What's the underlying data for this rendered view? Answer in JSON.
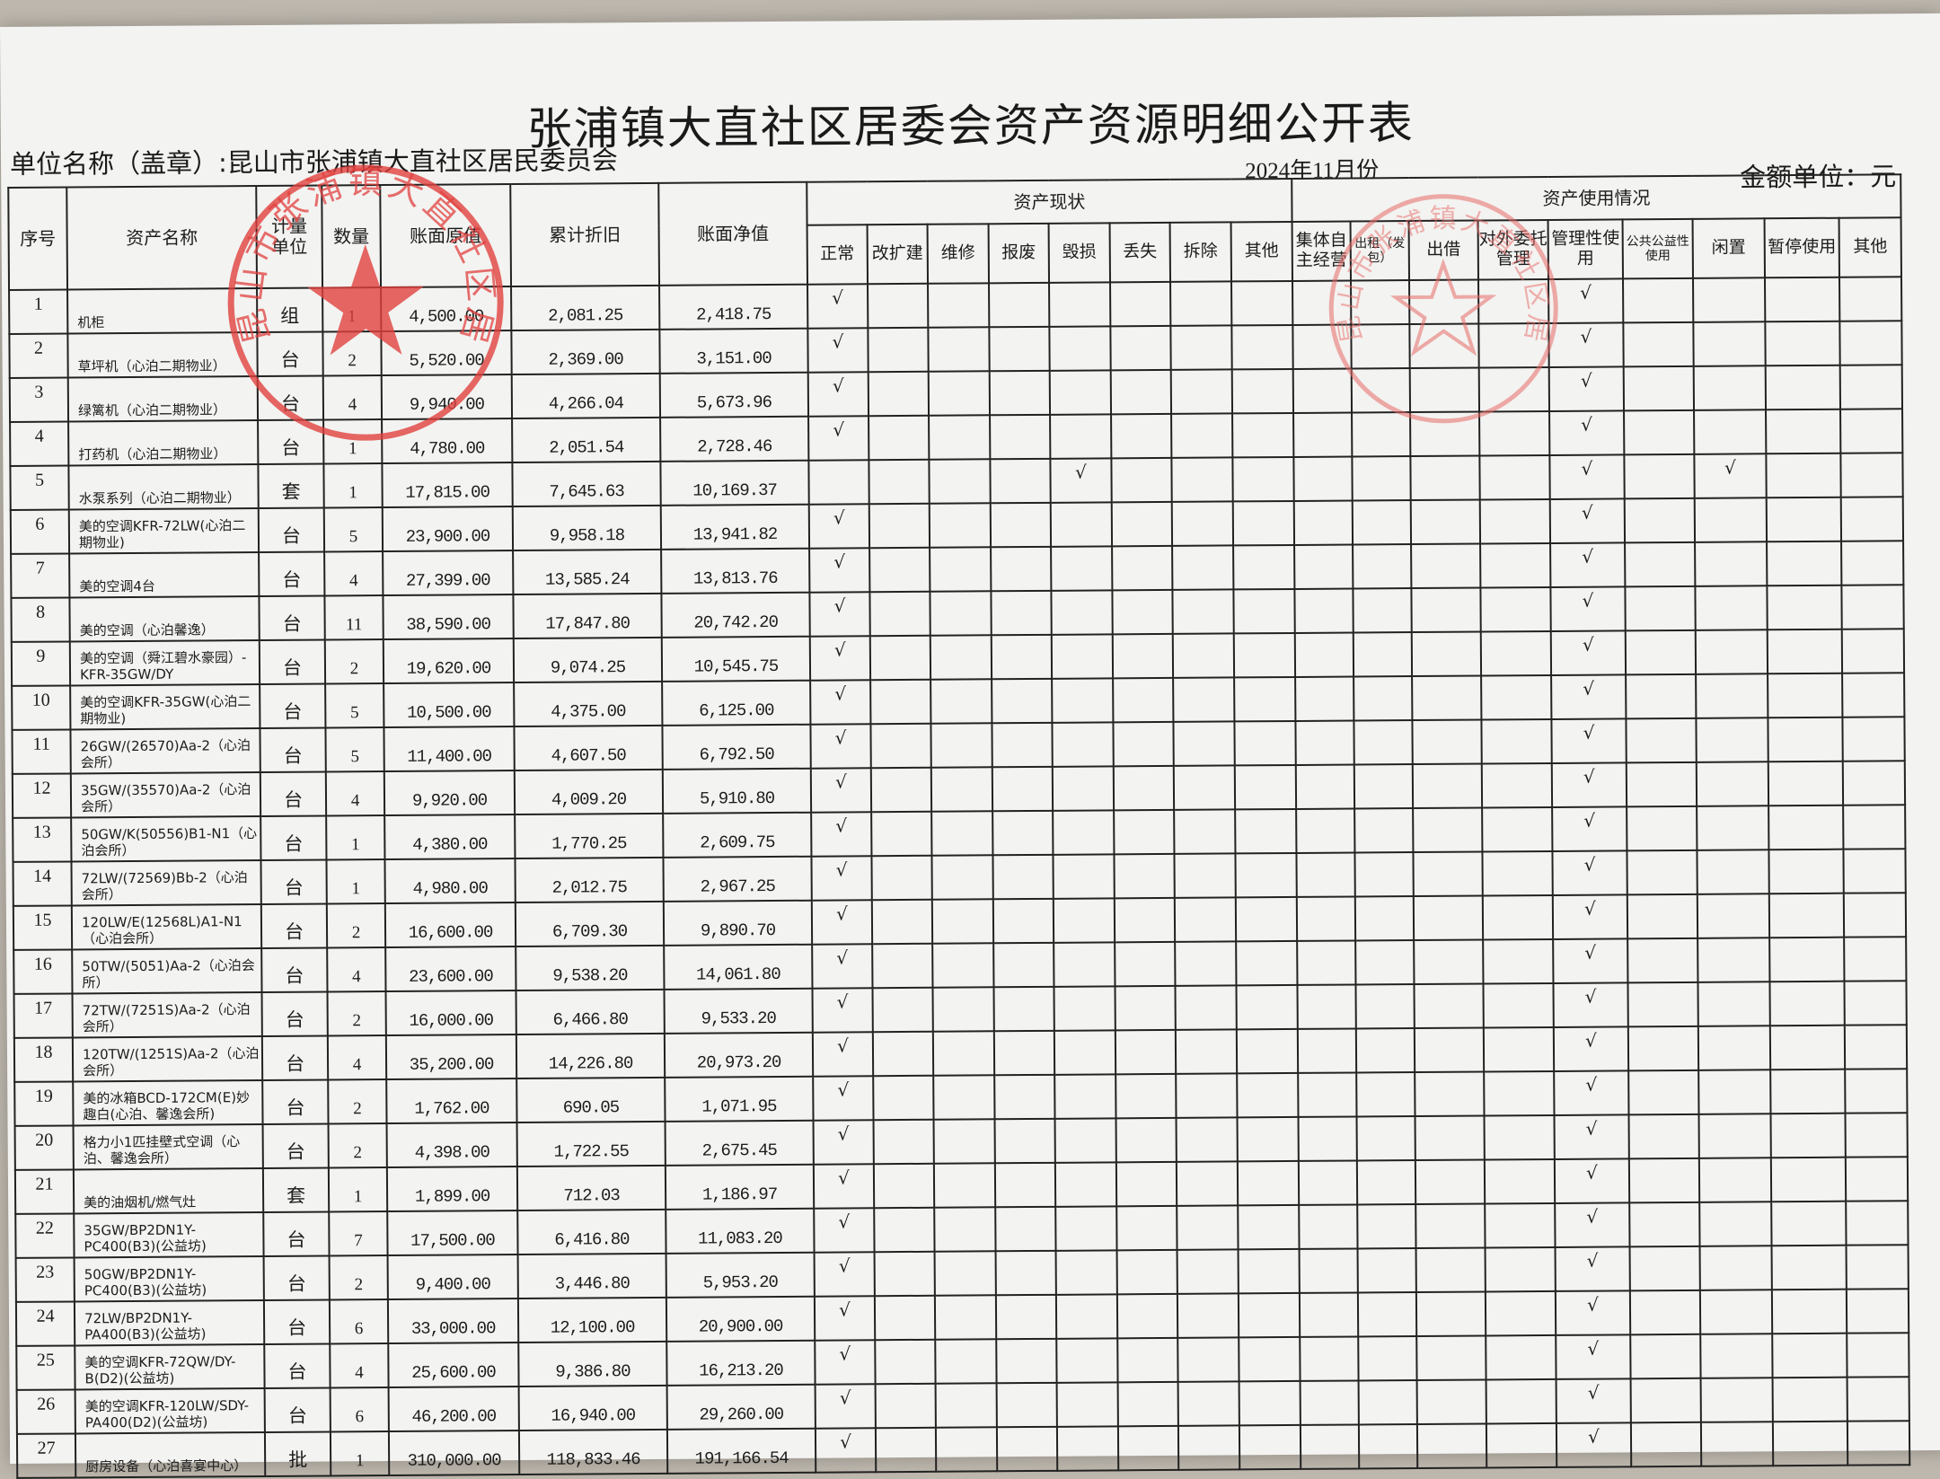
{
  "title": "张浦镇大直社区居委会资产资源明细公开表",
  "unit_label": "单位名称（盖章）:",
  "unit_name": "昆山市张浦镇大直社区居民委员会",
  "period": "2024年11月份",
  "money_unit": "金额单位：元",
  "stamp_text": "昆山市张浦镇大直社区居民委员会",
  "colors": {
    "stamp": "#e0413f",
    "ink": "#1c1c1c",
    "paper": "#f3f3f1"
  },
  "headers": {
    "no": "序号",
    "name": "资产名称",
    "unit": "计量单位",
    "qty": "数量",
    "original": "账面原值",
    "depreciation": "累计折旧",
    "net": "账面净值",
    "status_group": "资产现状",
    "usage_group": "资产使用情况",
    "status": [
      "正常",
      "改扩建",
      "维修",
      "报废",
      "毁损",
      "丢失",
      "拆除",
      "其他"
    ],
    "usage": [
      "集体自主经营",
      "出租（发包）",
      "出借",
      "对外委托管理",
      "管理性使用",
      "公共公益性使用",
      "闲置",
      "暂停使用",
      "其他"
    ]
  },
  "check_mark": "√",
  "rows": [
    {
      "no": "1",
      "name": "机柜",
      "unit": "组",
      "qty": "1",
      "original": "4,500.00",
      "depreciation": "2,081.25",
      "net": "2,418.75",
      "status": [
        "正常"
      ],
      "usage": [
        "管理性使用"
      ]
    },
    {
      "no": "2",
      "name": "草坪机（心泊二期物业）",
      "unit": "台",
      "qty": "2",
      "original": "5,520.00",
      "depreciation": "2,369.00",
      "net": "3,151.00",
      "status": [
        "正常"
      ],
      "usage": [
        "管理性使用"
      ]
    },
    {
      "no": "3",
      "name": "绿篱机（心泊二期物业）",
      "unit": "台",
      "qty": "4",
      "original": "9,940.00",
      "depreciation": "4,266.04",
      "net": "5,673.96",
      "status": [
        "正常"
      ],
      "usage": [
        "管理性使用"
      ]
    },
    {
      "no": "4",
      "name": "打药机（心泊二期物业）",
      "unit": "台",
      "qty": "1",
      "original": "4,780.00",
      "depreciation": "2,051.54",
      "net": "2,728.46",
      "status": [
        "正常"
      ],
      "usage": [
        "管理性使用"
      ]
    },
    {
      "no": "5",
      "name": "水泵系列（心泊二期物业）",
      "unit": "套",
      "qty": "1",
      "original": "17,815.00",
      "depreciation": "7,645.63",
      "net": "10,169.37",
      "status": [
        "毁损"
      ],
      "usage": [
        "管理性使用",
        "闲置"
      ]
    },
    {
      "no": "6",
      "name": "美的空调KFR-72LW(心泊二期物业)",
      "unit": "台",
      "qty": "5",
      "original": "23,900.00",
      "depreciation": "9,958.18",
      "net": "13,941.82",
      "status": [
        "正常"
      ],
      "usage": [
        "管理性使用"
      ]
    },
    {
      "no": "7",
      "name": "美的空调4台",
      "unit": "台",
      "qty": "4",
      "original": "27,399.00",
      "depreciation": "13,585.24",
      "net": "13,813.76",
      "status": [
        "正常"
      ],
      "usage": [
        "管理性使用"
      ]
    },
    {
      "no": "8",
      "name": "美的空调（心泊馨逸）",
      "unit": "台",
      "qty": "11",
      "original": "38,590.00",
      "depreciation": "17,847.80",
      "net": "20,742.20",
      "status": [
        "正常"
      ],
      "usage": [
        "管理性使用"
      ]
    },
    {
      "no": "9",
      "name": "美的空调（舜江碧水豪园）-KFR-35GW/DY",
      "unit": "台",
      "qty": "2",
      "original": "19,620.00",
      "depreciation": "9,074.25",
      "net": "10,545.75",
      "status": [
        "正常"
      ],
      "usage": [
        "管理性使用"
      ]
    },
    {
      "no": "10",
      "name": "美的空调KFR-35GW(心泊二期物业)",
      "unit": "台",
      "qty": "5",
      "original": "10,500.00",
      "depreciation": "4,375.00",
      "net": "6,125.00",
      "status": [
        "正常"
      ],
      "usage": [
        "管理性使用"
      ]
    },
    {
      "no": "11",
      "name": "26GW/(26570)Aa-2（心泊会所）",
      "unit": "台",
      "qty": "5",
      "original": "11,400.00",
      "depreciation": "4,607.50",
      "net": "6,792.50",
      "status": [
        "正常"
      ],
      "usage": [
        "管理性使用"
      ]
    },
    {
      "no": "12",
      "name": "35GW/(35570)Aa-2（心泊会所）",
      "unit": "台",
      "qty": "4",
      "original": "9,920.00",
      "depreciation": "4,009.20",
      "net": "5,910.80",
      "status": [
        "正常"
      ],
      "usage": [
        "管理性使用"
      ]
    },
    {
      "no": "13",
      "name": "50GW/K(50556)B1-N1（心泊会所）",
      "unit": "台",
      "qty": "1",
      "original": "4,380.00",
      "depreciation": "1,770.25",
      "net": "2,609.75",
      "status": [
        "正常"
      ],
      "usage": [
        "管理性使用"
      ]
    },
    {
      "no": "14",
      "name": "72LW/(72569)Bb-2（心泊会所）",
      "unit": "台",
      "qty": "1",
      "original": "4,980.00",
      "depreciation": "2,012.75",
      "net": "2,967.25",
      "status": [
        "正常"
      ],
      "usage": [
        "管理性使用"
      ]
    },
    {
      "no": "15",
      "name": "120LW/E(12568L)A1-N1（心泊会所）",
      "unit": "台",
      "qty": "2",
      "original": "16,600.00",
      "depreciation": "6,709.30",
      "net": "9,890.70",
      "status": [
        "正常"
      ],
      "usage": [
        "管理性使用"
      ]
    },
    {
      "no": "16",
      "name": "50TW/(5051)Aa-2（心泊会所）",
      "unit": "台",
      "qty": "4",
      "original": "23,600.00",
      "depreciation": "9,538.20",
      "net": "14,061.80",
      "status": [
        "正常"
      ],
      "usage": [
        "管理性使用"
      ]
    },
    {
      "no": "17",
      "name": "72TW/(7251S)Aa-2（心泊会所）",
      "unit": "台",
      "qty": "2",
      "original": "16,000.00",
      "depreciation": "6,466.80",
      "net": "9,533.20",
      "status": [
        "正常"
      ],
      "usage": [
        "管理性使用"
      ]
    },
    {
      "no": "18",
      "name": "120TW/(1251S)Aa-2（心泊会所）",
      "unit": "台",
      "qty": "4",
      "original": "35,200.00",
      "depreciation": "14,226.80",
      "net": "20,973.20",
      "status": [
        "正常"
      ],
      "usage": [
        "管理性使用"
      ]
    },
    {
      "no": "19",
      "name": "美的冰箱BCD-172CM(E)妙趣白(心泊、馨逸会所)",
      "unit": "台",
      "qty": "2",
      "original": "1,762.00",
      "depreciation": "690.05",
      "net": "1,071.95",
      "status": [
        "正常"
      ],
      "usage": [
        "管理性使用"
      ]
    },
    {
      "no": "20",
      "name": "格力小1匹挂壁式空调（心泊、馨逸会所）",
      "unit": "台",
      "qty": "2",
      "original": "4,398.00",
      "depreciation": "1,722.55",
      "net": "2,675.45",
      "status": [
        "正常"
      ],
      "usage": [
        "管理性使用"
      ]
    },
    {
      "no": "21",
      "name": "美的油烟机/燃气灶",
      "unit": "套",
      "qty": "1",
      "original": "1,899.00",
      "depreciation": "712.03",
      "net": "1,186.97",
      "status": [
        "正常"
      ],
      "usage": [
        "管理性使用"
      ]
    },
    {
      "no": "22",
      "name": "35GW/BP2DN1Y-PC400(B3)(公益坊)",
      "unit": "台",
      "qty": "7",
      "original": "17,500.00",
      "depreciation": "6,416.80",
      "net": "11,083.20",
      "status": [
        "正常"
      ],
      "usage": [
        "管理性使用"
      ]
    },
    {
      "no": "23",
      "name": "50GW/BP2DN1Y-PC400(B3)(公益坊)",
      "unit": "台",
      "qty": "2",
      "original": "9,400.00",
      "depreciation": "3,446.80",
      "net": "5,953.20",
      "status": [
        "正常"
      ],
      "usage": [
        "管理性使用"
      ]
    },
    {
      "no": "24",
      "name": "72LW/BP2DN1Y-PA400(B3)(公益坊)",
      "unit": "台",
      "qty": "6",
      "original": "33,000.00",
      "depreciation": "12,100.00",
      "net": "20,900.00",
      "status": [
        "正常"
      ],
      "usage": [
        "管理性使用"
      ]
    },
    {
      "no": "25",
      "name": "美的空调KFR-72QW/DY-B(D2)(公益坊)",
      "unit": "台",
      "qty": "4",
      "original": "25,600.00",
      "depreciation": "9,386.80",
      "net": "16,213.20",
      "status": [
        "正常"
      ],
      "usage": [
        "管理性使用"
      ]
    },
    {
      "no": "26",
      "name": "美的空调KFR-120LW/SDY-PA400(D2)(公益坊)",
      "unit": "台",
      "qty": "6",
      "original": "46,200.00",
      "depreciation": "16,940.00",
      "net": "29,260.00",
      "status": [
        "正常"
      ],
      "usage": [
        "管理性使用"
      ]
    },
    {
      "no": "27",
      "name": "厨房设备（心泊喜宴中心）",
      "unit": "批",
      "qty": "1",
      "original": "310,000.00",
      "depreciation": "118,833.46",
      "net": "191,166.54",
      "status": [
        "正常"
      ],
      "usage": [
        "管理性使用"
      ]
    }
  ]
}
